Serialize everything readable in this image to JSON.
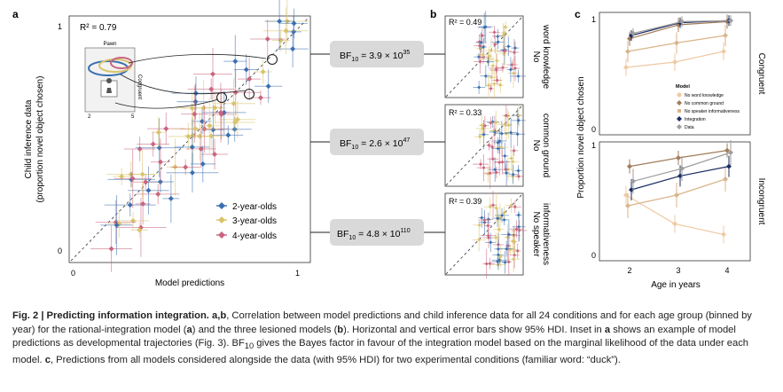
{
  "panels": {
    "a": {
      "label": "a",
      "r2": "R² = 0.79",
      "xlabel": "Model predictions",
      "ylabel_1": "Child inference data",
      "ylabel_2": "(proportion novel object chosen)",
      "xticks": [
        "0",
        "1"
      ],
      "yticks": [
        "0",
        "1"
      ],
      "legend": [
        {
          "name": "2-year-olds",
          "color": "#3b6fb0"
        },
        {
          "name": "3-year-olds",
          "color": "#d9c36a"
        },
        {
          "name": "4-year-olds",
          "color": "#c9657d"
        }
      ],
      "inset": {
        "title": "Pawn",
        "side": "Congruent",
        "xtick_left": "2",
        "xtick_right": "5"
      }
    },
    "bf": [
      {
        "prefix": "BF",
        "sub": "10",
        "mid": " = ",
        "mant": "3.9 × 10",
        "exp": "35"
      },
      {
        "prefix": "BF",
        "sub": "10",
        "mid": " = ",
        "mant": "2.6 × 10",
        "exp": "47"
      },
      {
        "prefix": "BF",
        "sub": "10",
        "mid": " = ",
        "mant": "4.8 × 10",
        "exp": "110"
      }
    ],
    "b": {
      "label": "b",
      "subpanels": [
        {
          "r2": "R² = 0.49",
          "side_1": "No",
          "side_2": "word knowledge"
        },
        {
          "r2": "R² = 0.33",
          "side_1": "No",
          "side_2": "common ground"
        },
        {
          "r2": "R² = 0.39",
          "side_1": "No speaker",
          "side_2": "informativeness"
        }
      ]
    },
    "c": {
      "label": "c",
      "ylabel": "Proportion novel object chosen",
      "xlabel": "Age in years",
      "xticks": [
        "2",
        "3",
        "4"
      ],
      "yticks": [
        "0",
        "1"
      ],
      "rows": [
        "Congruent",
        "Incongruent"
      ],
      "legend_title": "Model",
      "legend": [
        {
          "name": "No word knowledge",
          "color": "#f0c9a3"
        },
        {
          "name": "No common ground",
          "color": "#a27c5a"
        },
        {
          "name": "No speaker informativeness",
          "color": "#d9b48a"
        },
        {
          "name": "Integration",
          "color": "#1b2e63"
        },
        {
          "name": "Data",
          "color": "#9e9e9e"
        }
      ]
    }
  },
  "caption": {
    "fig": "Fig. 2 | Predicting information integration.",
    "ab": " a,b",
    "t1": ", Correlation between model predictions and child inference data for all 24 conditions and for each age group (binned by year) for the rational-integration model (",
    "a1": "a",
    "t2": ") and the three lesioned models (",
    "b1": "b",
    "t3": "). Horizontal and vertical error bars show 95% HDI. Inset in ",
    "a2": "a",
    "t4": " shows an example of model predictions as developmental trajectories (Fig. 3). BF",
    "sub": "10",
    "t5": " gives the Bayes factor in favour of the integration model based on the marginal likelihood of the data under each model. ",
    "c1": "c",
    "t6": ", Predictions from all models considered alongside the data (with 95% HDI) for two experimental conditions (familiar word: “duck”)."
  }
}
